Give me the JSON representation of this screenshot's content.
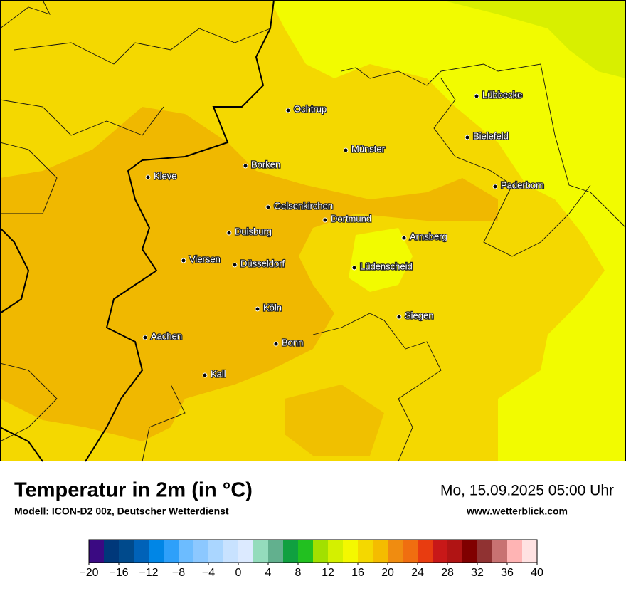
{
  "map": {
    "cities": [
      "Lübbecke",
      "Ochtrup",
      "Bielefeld",
      "Münster",
      "Borken",
      "Kleve",
      "Paderborn",
      "Gelsenkirchen",
      "Dortmund",
      "Duisburg",
      "Arnsberg",
      "Viersen",
      "Düsseldorf",
      "Lüdenscheid",
      "Köln",
      "Siegen",
      "Aachen",
      "Bonn",
      "Kall"
    ]
  },
  "footer": {
    "title": "Temperatur in 2m (in °C)",
    "subtitle": "Modell: ICON-D2 00z, Deutscher Wetterdienst",
    "date": "Mo, 15.09.2025 05:00 Uhr",
    "website": "www.wetterblick.com"
  },
  "colorbar": {
    "range": [
      -20,
      40
    ],
    "colors": [
      "#3a0a82",
      "#00387a",
      "#004a8c",
      "#0062b8",
      "#0086e6",
      "#2ea0fa",
      "#6cbcff",
      "#8cc8ff",
      "#aad6ff",
      "#c8e2ff",
      "#dceaff",
      "#94dcbc",
      "#62b08e",
      "#10a040",
      "#22c020",
      "#a2e000",
      "#d4f000",
      "#f4f800",
      "#f4d800",
      "#f4bc00",
      "#f08c10",
      "#f06e10",
      "#e83c10",
      "#c81818",
      "#b01414",
      "#800000",
      "#903232",
      "#c87272",
      "#ffb4b4",
      "#ffe2e2"
    ],
    "ticks": [
      {
        "value": -20,
        "label": "−20"
      },
      {
        "value": -16,
        "label": "−16"
      },
      {
        "value": -12,
        "label": "−12"
      },
      {
        "value": -8,
        "label": "−8"
      },
      {
        "value": -4,
        "label": "−4"
      },
      0,
      4,
      8,
      12,
      16,
      20,
      24,
      28,
      32,
      36,
      40
    ]
  }
}
